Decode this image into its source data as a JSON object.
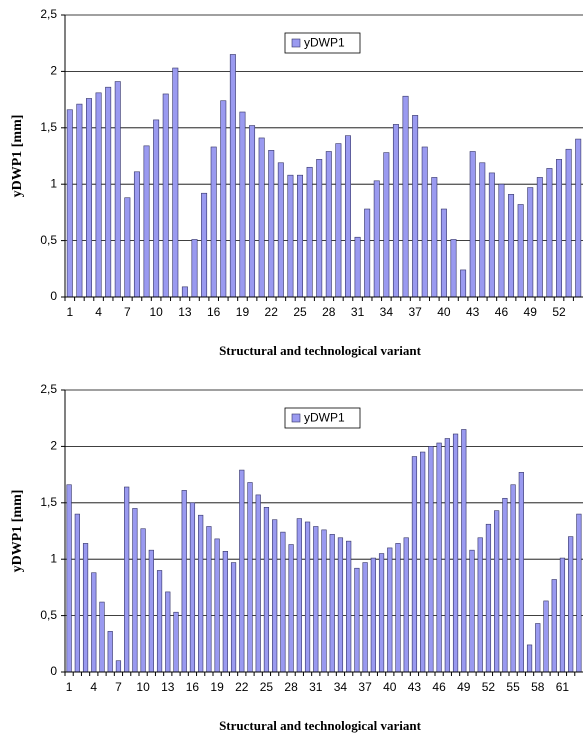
{
  "chart_data": [
    {
      "type": "bar",
      "x_label": "Structural and technological variant",
      "y_label": "yDWP1 [mm]",
      "categories": [
        "1",
        null,
        null,
        "4",
        null,
        null,
        "7",
        null,
        null,
        "10",
        null,
        null,
        "13",
        null,
        null,
        "16",
        null,
        null,
        "19",
        null,
        null,
        "22",
        null,
        null,
        "25",
        null,
        null,
        "28",
        null,
        null,
        "31",
        null,
        null,
        "34",
        null,
        null,
        "37",
        null,
        null,
        "40",
        null,
        null,
        "43",
        null,
        null,
        "46",
        null,
        null,
        "49",
        null,
        null,
        "52",
        null,
        null
      ],
      "series": [
        {
          "name": "yDWP1",
          "color": "#9a9af0",
          "values": [
            1.66,
            1.71,
            1.76,
            1.81,
            1.86,
            1.91,
            0.88,
            1.11,
            1.34,
            1.57,
            1.8,
            2.03,
            0.09,
            0.51,
            0.92,
            1.33,
            1.74,
            2.15,
            1.64,
            1.52,
            1.41,
            1.3,
            1.19,
            1.08,
            1.08,
            1.15,
            1.22,
            1.29,
            1.36,
            1.43,
            0.53,
            0.78,
            1.03,
            1.28,
            1.53,
            1.78,
            1.61,
            1.33,
            1.06,
            0.78,
            0.51,
            0.24,
            1.29,
            1.19,
            1.1,
            1.0,
            0.91,
            0.82,
            0.97,
            1.06,
            1.14,
            1.22,
            1.31,
            1.4
          ]
        }
      ],
      "ylim": [
        0,
        2.5
      ],
      "yticks": [
        0,
        {
          "value": 0.5,
          "label": "0,5"
        },
        1,
        {
          "value": 1.5,
          "label": "1,5"
        },
        2,
        {
          "value": 2.5,
          "label": "2,5"
        }
      ],
      "grid": true
    },
    {
      "type": "bar",
      "x_label": "Structural and technological variant",
      "y_label": "yDWP1 [mm]",
      "categories": [
        "1",
        null,
        null,
        "4",
        null,
        null,
        "7",
        null,
        null,
        "10",
        null,
        null,
        "13",
        null,
        null,
        "16",
        null,
        null,
        "19",
        null,
        null,
        "22",
        null,
        null,
        "25",
        null,
        null,
        "28",
        null,
        null,
        "31",
        null,
        null,
        "34",
        null,
        null,
        "37",
        null,
        null,
        "40",
        null,
        null,
        "43",
        null,
        null,
        "46",
        null,
        null,
        "49",
        null,
        null,
        "52",
        null,
        null,
        "55",
        null,
        null,
        "58",
        null,
        null,
        "61",
        null,
        null
      ],
      "series": [
        {
          "name": "yDWP1",
          "color": "#9a9af0",
          "values": [
            1.66,
            1.4,
            1.14,
            0.88,
            0.62,
            0.36,
            0.1,
            1.64,
            1.45,
            1.27,
            1.08,
            0.9,
            0.71,
            0.53,
            1.61,
            1.5,
            1.39,
            1.29,
            1.18,
            1.07,
            0.97,
            1.79,
            1.68,
            1.57,
            1.46,
            1.35,
            1.24,
            1.13,
            1.36,
            1.33,
            1.29,
            1.26,
            1.22,
            1.19,
            1.16,
            0.92,
            0.97,
            1.01,
            1.05,
            1.1,
            1.14,
            1.19,
            1.91,
            1.95,
            2.0,
            2.03,
            2.07,
            2.11,
            2.15,
            1.08,
            1.19,
            1.31,
            1.43,
            1.54,
            1.66,
            1.77,
            0.24,
            0.43,
            0.63,
            0.82,
            1.01,
            1.2,
            1.4
          ]
        }
      ],
      "ylim": [
        0,
        2.5
      ],
      "yticks": [
        0,
        {
          "value": 0.5,
          "label": "0,5"
        },
        1,
        {
          "value": 1.5,
          "label": "1,5"
        },
        2,
        {
          "value": 2.5,
          "label": "2,5"
        }
      ],
      "grid": true
    }
  ]
}
